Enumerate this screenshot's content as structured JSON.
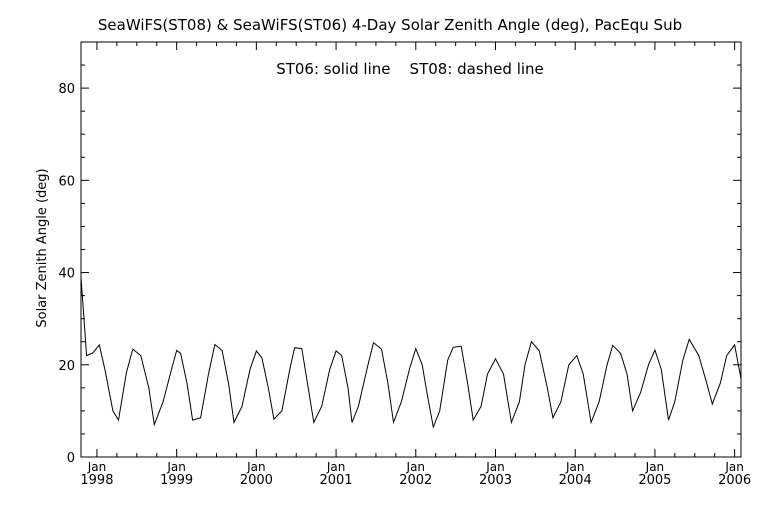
{
  "chart_data": {
    "type": "line",
    "title": "SeaWiFS(ST08) & SeaWiFS(ST06) 4-Day Solar Zenith Angle (deg), PacEqu Sub",
    "annotation": "ST06: solid line    ST08: dashed line",
    "xlabel": "",
    "ylabel": "Solar Zenith Angle (deg)",
    "xlim": [
      1997.8,
      2006.08
    ],
    "ylim": [
      0,
      90
    ],
    "y_ticks": [
      0,
      20,
      40,
      60,
      80
    ],
    "x_ticks": [
      {
        "value": 1998,
        "month": "Jan",
        "year": "1998"
      },
      {
        "value": 1999,
        "month": "Jan",
        "year": "1999"
      },
      {
        "value": 2000,
        "month": "Jan",
        "year": "2000"
      },
      {
        "value": 2001,
        "month": "Jan",
        "year": "2001"
      },
      {
        "value": 2002,
        "month": "Jan",
        "year": "2002"
      },
      {
        "value": 2003,
        "month": "Jan",
        "year": "2003"
      },
      {
        "value": 2004,
        "month": "Jan",
        "year": "2004"
      },
      {
        "value": 2005,
        "month": "Jan",
        "year": "2005"
      },
      {
        "value": 2006,
        "month": "Jan",
        "year": "2006"
      }
    ],
    "grid": false,
    "series": [
      {
        "name": "ST06",
        "style": "solid",
        "color": "#000000",
        "points": [
          [
            1997.8,
            39.0
          ],
          [
            1997.87,
            22.0
          ],
          [
            1997.95,
            22.6
          ],
          [
            1998.03,
            24.3
          ],
          [
            1998.1,
            19.0
          ],
          [
            1998.2,
            10.0
          ],
          [
            1998.27,
            8.0
          ],
          [
            1998.37,
            18.3
          ],
          [
            1998.45,
            23.4
          ],
          [
            1998.55,
            22.0
          ],
          [
            1998.65,
            15.0
          ],
          [
            1998.72,
            7.0
          ],
          [
            1998.83,
            12.0
          ],
          [
            1998.95,
            20.0
          ],
          [
            1999.0,
            23.1
          ],
          [
            1999.05,
            22.5
          ],
          [
            1999.13,
            16.0
          ],
          [
            1999.2,
            8.0
          ],
          [
            1999.3,
            8.5
          ],
          [
            1999.4,
            18.0
          ],
          [
            1999.48,
            24.4
          ],
          [
            1999.57,
            23.1
          ],
          [
            1999.65,
            16.0
          ],
          [
            1999.72,
            7.5
          ],
          [
            1999.82,
            11.0
          ],
          [
            1999.92,
            19.0
          ],
          [
            2000.0,
            23.0
          ],
          [
            2000.07,
            21.5
          ],
          [
            2000.15,
            15.0
          ],
          [
            2000.22,
            8.2
          ],
          [
            2000.32,
            10.0
          ],
          [
            2000.42,
            19.0
          ],
          [
            2000.48,
            23.7
          ],
          [
            2000.57,
            23.5
          ],
          [
            2000.65,
            15.0
          ],
          [
            2000.72,
            7.5
          ],
          [
            2000.82,
            11.0
          ],
          [
            2000.92,
            19.0
          ],
          [
            2001.0,
            23.0
          ],
          [
            2001.07,
            22.0
          ],
          [
            2001.15,
            15.0
          ],
          [
            2001.2,
            7.5
          ],
          [
            2001.28,
            11.0
          ],
          [
            2001.4,
            20.0
          ],
          [
            2001.47,
            24.8
          ],
          [
            2001.57,
            23.4
          ],
          [
            2001.65,
            16.0
          ],
          [
            2001.72,
            7.5
          ],
          [
            2001.82,
            12.0
          ],
          [
            2001.92,
            19.0
          ],
          [
            2002.0,
            23.5
          ],
          [
            2002.08,
            20.0
          ],
          [
            2002.15,
            13.0
          ],
          [
            2002.22,
            6.5
          ],
          [
            2002.3,
            10.0
          ],
          [
            2002.4,
            21.0
          ],
          [
            2002.47,
            23.8
          ],
          [
            2002.57,
            24.0
          ],
          [
            2002.65,
            16.0
          ],
          [
            2002.72,
            8.0
          ],
          [
            2002.82,
            11.0
          ],
          [
            2002.9,
            18.0
          ],
          [
            2003.0,
            21.3
          ],
          [
            2003.1,
            18.0
          ],
          [
            2003.2,
            7.5
          ],
          [
            2003.3,
            12.0
          ],
          [
            2003.37,
            20.0
          ],
          [
            2003.45,
            25.0
          ],
          [
            2003.55,
            23.0
          ],
          [
            2003.65,
            15.0
          ],
          [
            2003.72,
            8.5
          ],
          [
            2003.82,
            12.0
          ],
          [
            2003.92,
            20.0
          ],
          [
            2004.02,
            22.0
          ],
          [
            2004.1,
            18.0
          ],
          [
            2004.2,
            7.5
          ],
          [
            2004.3,
            12.0
          ],
          [
            2004.4,
            20.0
          ],
          [
            2004.47,
            24.2
          ],
          [
            2004.57,
            22.5
          ],
          [
            2004.65,
            18.0
          ],
          [
            2004.72,
            10.0
          ],
          [
            2004.82,
            14.0
          ],
          [
            2004.92,
            20.0
          ],
          [
            2005.0,
            23.2
          ],
          [
            2005.08,
            19.0
          ],
          [
            2005.17,
            8.0
          ],
          [
            2005.25,
            12.0
          ],
          [
            2005.35,
            21.0
          ],
          [
            2005.43,
            25.5
          ],
          [
            2005.55,
            22.0
          ],
          [
            2005.65,
            16.0
          ],
          [
            2005.72,
            11.5
          ],
          [
            2005.82,
            16.0
          ],
          [
            2005.9,
            22.0
          ],
          [
            2006.0,
            24.3
          ],
          [
            2006.08,
            17.0
          ]
        ]
      }
    ]
  }
}
